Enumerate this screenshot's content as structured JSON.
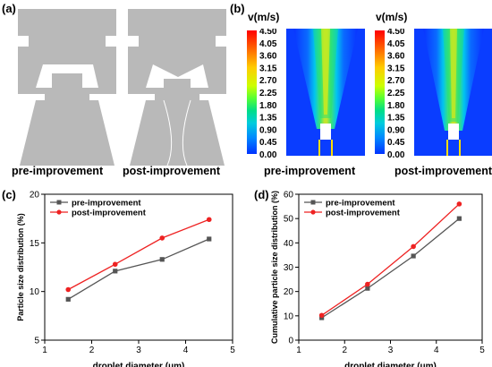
{
  "panels": {
    "a": {
      "label": "(a)",
      "caption_left": "pre-improvement",
      "caption_right": "post-improvement"
    },
    "b": {
      "label": "(b)",
      "unit": "v(m/s)",
      "colorbar_ticks": [
        "4.50",
        "4.05",
        "3.60",
        "3.15",
        "2.70",
        "2.25",
        "1.80",
        "1.35",
        "0.90",
        "0.45",
        "0.00"
      ],
      "colorbar_colors": [
        "#ff0000",
        "#ff6600",
        "#ffcc00",
        "#ccff00",
        "#55ff33",
        "#00dd88",
        "#00ccdd",
        "#0088ff",
        "#0033ff"
      ],
      "caption_left": "pre-improvement",
      "caption_right": "post-improvement"
    },
    "c": {
      "label": "(c)"
    },
    "d": {
      "label": "(d)"
    }
  },
  "chart_data": [
    {
      "type": "line",
      "xlabel": "droplet diameter (μm)",
      "ylabel": "Particle size distribution (%)",
      "xlim": [
        1,
        5
      ],
      "ylim": [
        5,
        20
      ],
      "xticks": [
        "1",
        "2",
        "3",
        "4",
        "5"
      ],
      "yticks": [
        "5",
        "10",
        "15",
        "20"
      ],
      "legend_position": "top-left",
      "x": [
        1.5,
        2.5,
        3.5,
        4.5
      ],
      "series": [
        {
          "name": "pre-improvement",
          "values": [
            9.2,
            12.1,
            13.3,
            15.4
          ],
          "color": "#555555",
          "marker": "square"
        },
        {
          "name": "post-improvement",
          "values": [
            10.2,
            12.8,
            15.5,
            17.4
          ],
          "color": "#ee2222",
          "marker": "circle"
        }
      ]
    },
    {
      "type": "line",
      "xlabel": "droplet diameter (μm)",
      "ylabel": "Cumulative particle size distribution (%)",
      "xlim": [
        1,
        5
      ],
      "ylim": [
        0,
        60
      ],
      "xticks": [
        "1",
        "2",
        "3",
        "4",
        "5"
      ],
      "yticks": [
        "0",
        "10",
        "20",
        "30",
        "40",
        "50",
        "60"
      ],
      "legend_position": "top-left",
      "x": [
        1.5,
        2.5,
        3.5,
        4.5
      ],
      "series": [
        {
          "name": "pre-improvement",
          "values": [
            9.2,
            21.3,
            34.6,
            50.0
          ],
          "color": "#555555",
          "marker": "square"
        },
        {
          "name": "post-improvement",
          "values": [
            10.2,
            23.0,
            38.5,
            56.0
          ],
          "color": "#ee2222",
          "marker": "circle"
        }
      ]
    }
  ]
}
